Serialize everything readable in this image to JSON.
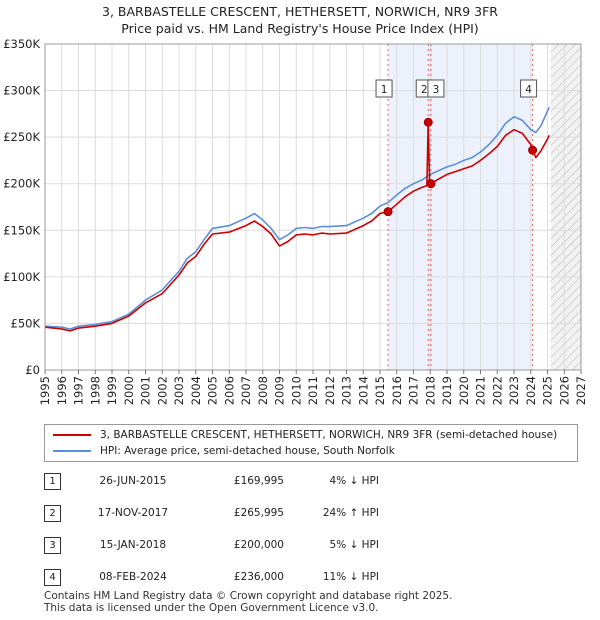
{
  "chart_data": {
    "type": "line",
    "title": "3, BARBASTELLE CRESCENT, HETHERSETT, NORWICH, NR9 3FR",
    "subtitle": "Price paid vs. HM Land Registry's House Price Index (HPI)",
    "xlim": [
      1995,
      2027
    ],
    "ylim": [
      0,
      350000
    ],
    "y_ticks": [
      0,
      50000,
      100000,
      150000,
      200000,
      250000,
      300000,
      350000
    ],
    "y_tick_labels": [
      "£0",
      "£50K",
      "£100K",
      "£150K",
      "£200K",
      "£250K",
      "£300K",
      "£350K"
    ],
    "x_ticks": [
      1995,
      1996,
      1997,
      1998,
      1999,
      2000,
      2001,
      2002,
      2003,
      2004,
      2005,
      2006,
      2007,
      2008,
      2009,
      2010,
      2011,
      2012,
      2013,
      2014,
      2015,
      2016,
      2017,
      2018,
      2019,
      2020,
      2021,
      2022,
      2023,
      2024,
      2025,
      2026,
      2027
    ],
    "x_tick_labels": [
      "1995",
      "1996",
      "1997",
      "1998",
      "1999",
      "2000",
      "2001",
      "2002",
      "2003",
      "2004",
      "2005",
      "2006",
      "2007",
      "2008",
      "2009",
      "2010",
      "2011",
      "2012",
      "2013",
      "2014",
      "2015",
      "2016",
      "2017",
      "2018",
      "2019",
      "2020",
      "2021",
      "2022",
      "2023",
      "2024",
      "2025",
      "2026",
      "2027"
    ],
    "hatch_from": 2025.2,
    "grid": true,
    "series": [
      {
        "name": "3, BARBASTELLE CRESCENT, HETHERSETT, NORWICH, NR9 3FR (semi-detached house)",
        "color": "#cc0000",
        "x": [
          1995.0,
          1996.0,
          1996.5,
          1997.0,
          1998.0,
          1999.0,
          2000.0,
          2001.0,
          2002.0,
          2003.0,
          2003.5,
          2004.0,
          2004.5,
          2005.0,
          2006.0,
          2007.0,
          2007.5,
          2008.0,
          2008.5,
          2009.0,
          2009.5,
          2010.0,
          2010.5,
          2011.0,
          2011.5,
          2012.0,
          2013.0,
          2014.0,
          2014.5,
          2015.0,
          2015.48,
          2016.0,
          2016.5,
          2017.0,
          2017.5,
          2017.8,
          2017.88,
          2017.96,
          2018.04,
          2018.5,
          2019.0,
          2019.5,
          2020.0,
          2020.5,
          2021.0,
          2021.5,
          2022.0,
          2022.5,
          2023.0,
          2023.5,
          2024.0,
          2024.11,
          2024.3,
          2024.6,
          2025.0,
          2025.1
        ],
        "y": [
          46000,
          44000,
          42000,
          45000,
          47000,
          50000,
          58000,
          72000,
          82000,
          102000,
          115000,
          122000,
          135000,
          146000,
          148000,
          155000,
          160000,
          154000,
          146000,
          133000,
          138000,
          145000,
          146000,
          145000,
          147000,
          146000,
          147000,
          155000,
          160000,
          168000,
          169995,
          178000,
          186000,
          192000,
          196000,
          198000,
          265995,
          205000,
          200000,
          205000,
          210000,
          213000,
          216000,
          219000,
          225000,
          232000,
          240000,
          252000,
          258000,
          254000,
          242000,
          236000,
          228000,
          235000,
          248000,
          252000
        ]
      },
      {
        "name": "HPI: Average price, semi-detached house, South Norfolk",
        "color": "#5b8fd6",
        "x": [
          1995.0,
          1996.0,
          1996.5,
          1997.0,
          1998.0,
          1999.0,
          2000.0,
          2001.0,
          2002.0,
          2003.0,
          2003.5,
          2004.0,
          2004.5,
          2005.0,
          2006.0,
          2007.0,
          2007.5,
          2008.0,
          2008.5,
          2009.0,
          2009.5,
          2010.0,
          2010.5,
          2011.0,
          2011.5,
          2012.0,
          2013.0,
          2014.0,
          2014.5,
          2015.0,
          2015.5,
          2016.0,
          2016.5,
          2017.0,
          2017.5,
          2018.0,
          2018.5,
          2019.0,
          2019.5,
          2020.0,
          2020.5,
          2021.0,
          2021.5,
          2022.0,
          2022.5,
          2023.0,
          2023.5,
          2024.0,
          2024.3,
          2024.6,
          2025.0,
          2025.1
        ],
        "y": [
          47000,
          46000,
          44000,
          47000,
          49000,
          52000,
          60000,
          75000,
          86000,
          106000,
          120000,
          127000,
          140000,
          152000,
          155000,
          163000,
          168000,
          161000,
          152000,
          140000,
          145000,
          152000,
          153000,
          152000,
          154000,
          154000,
          155000,
          163000,
          168000,
          176000,
          180000,
          188000,
          195000,
          200000,
          204000,
          210000,
          214000,
          218000,
          221000,
          225000,
          228000,
          234000,
          242000,
          252000,
          265000,
          272000,
          268000,
          258000,
          255000,
          262000,
          278000,
          282000
        ]
      }
    ],
    "markers": [
      {
        "label": "1",
        "x": 2015.48,
        "y": 169995
      },
      {
        "label": "2",
        "x": 2017.88,
        "y": 265995
      },
      {
        "label": "3",
        "x": 2018.04,
        "y": 200000
      },
      {
        "label": "4",
        "x": 2024.11,
        "y": 236000
      }
    ],
    "vlines": [
      2015.48,
      2017.88,
      2018.04,
      2024.11
    ],
    "legend": [
      {
        "label": "3, BARBASTELLE CRESCENT, HETHERSETT, NORWICH, NR9 3FR (semi-detached house)",
        "color": "#cc0000"
      },
      {
        "label": "HPI: Average price, semi-detached house, South Norfolk",
        "color": "#5b8fd6"
      }
    ]
  },
  "sales": [
    {
      "num": "1",
      "date": "26-JUN-2015",
      "price": "£169,995",
      "hpi": "4% ↓ HPI"
    },
    {
      "num": "2",
      "date": "17-NOV-2017",
      "price": "£265,995",
      "hpi": "24% ↑ HPI"
    },
    {
      "num": "3",
      "date": "15-JAN-2018",
      "price": "£200,000",
      "hpi": "5% ↓ HPI"
    },
    {
      "num": "4",
      "date": "08-FEB-2024",
      "price": "£236,000",
      "hpi": "11% ↓ HPI"
    }
  ],
  "footer": {
    "line1": "Contains HM Land Registry data © Crown copyright and database right 2025.",
    "line2": "This data is licensed under the Open Government Licence v3.0."
  }
}
